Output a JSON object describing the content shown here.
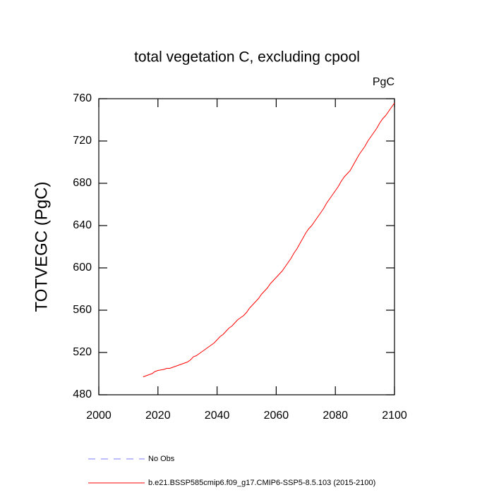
{
  "chart_data": {
    "type": "line",
    "title": "total vegetation C, excluding cpool",
    "units_label": "PgC",
    "y_label": "TOTVEGC  (PgC)",
    "xlim": [
      2000,
      2100
    ],
    "xticks": [
      2000,
      2020,
      2040,
      2060,
      2080,
      2100
    ],
    "ylim": [
      480,
      760
    ],
    "yticks": [
      480,
      520,
      560,
      600,
      640,
      680,
      720,
      760
    ],
    "x": [
      2015,
      2016,
      2017,
      2018,
      2019,
      2020,
      2021,
      2022,
      2023,
      2024,
      2025,
      2026,
      2027,
      2028,
      2029,
      2030,
      2031,
      2032,
      2033,
      2034,
      2035,
      2036,
      2037,
      2038,
      2039,
      2040,
      2041,
      2042,
      2043,
      2044,
      2045,
      2046,
      2047,
      2048,
      2049,
      2050,
      2051,
      2052,
      2053,
      2054,
      2055,
      2056,
      2057,
      2058,
      2059,
      2060,
      2061,
      2062,
      2063,
      2064,
      2065,
      2066,
      2067,
      2068,
      2069,
      2070,
      2071,
      2072,
      2073,
      2074,
      2075,
      2076,
      2077,
      2078,
      2079,
      2080,
      2081,
      2082,
      2083,
      2084,
      2085,
      2086,
      2087,
      2088,
      2089,
      2090,
      2091,
      2092,
      2093,
      2094,
      2095,
      2096,
      2097,
      2098,
      2099,
      2100
    ],
    "series": [
      {
        "name": "b.e21.BSSP585cmip6.f09_g17.CMIP6-SSP5-8.5.103 (2015-2100)",
        "color": "#ff0000",
        "values": [
          497,
          498,
          499,
          500,
          502,
          503,
          503.5,
          504,
          505,
          505,
          506,
          507,
          508,
          509,
          510,
          511,
          513,
          516,
          517,
          519,
          521,
          523,
          525,
          527,
          529,
          532,
          535,
          537,
          540,
          543,
          545,
          548,
          551,
          553,
          555,
          558,
          562,
          565,
          568,
          571,
          575,
          578,
          581,
          585,
          588,
          591,
          594,
          597,
          601,
          605,
          609,
          614,
          618,
          623,
          628,
          633,
          637,
          640,
          644,
          648,
          652,
          656,
          661,
          665,
          669,
          673,
          677,
          682,
          686,
          689,
          692,
          697,
          702,
          707,
          711,
          715,
          720,
          724,
          728,
          732,
          737,
          741,
          744,
          748,
          752,
          756
        ]
      }
    ],
    "extra_legend": [
      {
        "name": "No Obs",
        "color": "#7b7bff",
        "dashed": true
      }
    ]
  }
}
